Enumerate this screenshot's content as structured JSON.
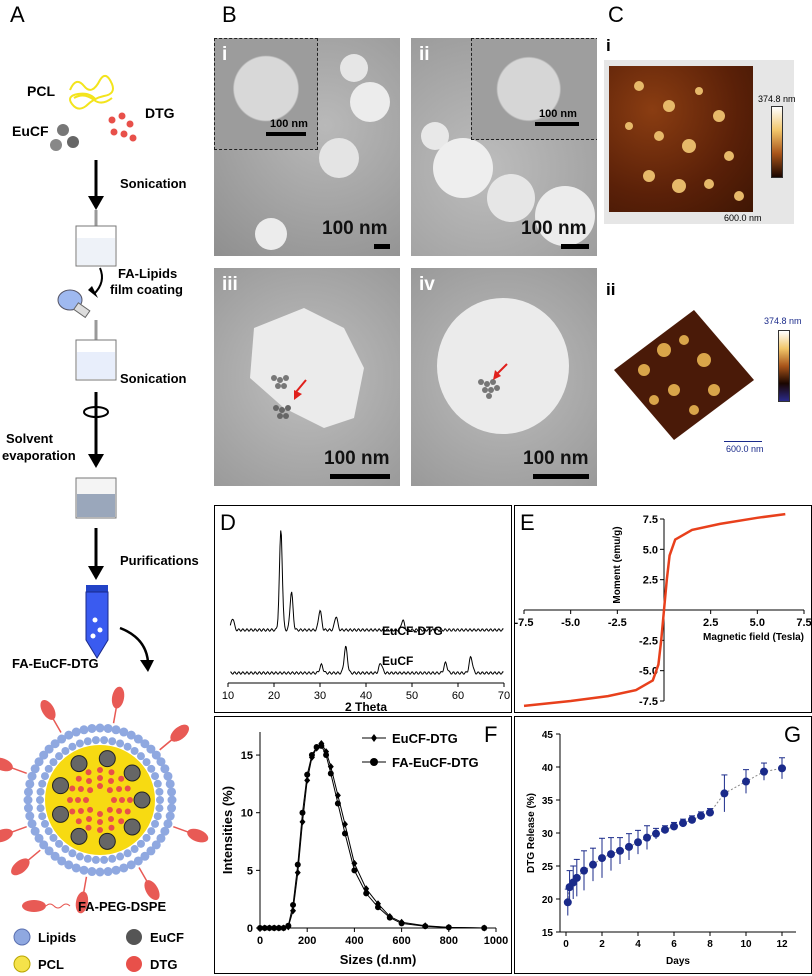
{
  "panels": {
    "A": "A",
    "B": "B",
    "C": "C",
    "D": "D",
    "E": "E",
    "F": "F",
    "G": "G"
  },
  "schematic": {
    "pcl": "PCL",
    "eucf": "EuCF",
    "dtg": "DTG",
    "step1": "Sonication",
    "step2a": "FA-Lipids",
    "step2b": "film coating",
    "step3": "Sonication",
    "step4a": "Solvent",
    "step4b": "evaporation",
    "step5": "Purifications",
    "product": "FA-EuCF-DTG",
    "legend": {
      "peg": "FA-PEG-DSPE",
      "lipids": "Lipids",
      "eucf": "EuCF",
      "pcl": "PCL",
      "dtg": "DTG"
    }
  },
  "tem": {
    "i": {
      "roman": "i",
      "inset_scale": "100 nm",
      "scale": "100 nm"
    },
    "ii": {
      "roman": "ii",
      "inset_scale": "100 nm",
      "scale": "100 nm"
    },
    "iii": {
      "roman": "iii",
      "scale": "100 nm"
    },
    "iv": {
      "roman": "iv",
      "scale": "100 nm"
    }
  },
  "afm": {
    "i": {
      "roman": "i",
      "max": "374.8 nm",
      "scale": "600.0 nm"
    },
    "ii": {
      "roman": "ii",
      "max": "374.8 nm",
      "scale": "600.0 nm"
    }
  },
  "colors": {
    "lipid": "#8fa8e0",
    "eucf": "#555555",
    "pcl": "#f5d800",
    "dtg": "#e8504a",
    "peg": "#e85a55",
    "curveE": "#e8401c",
    "seriesG": "#1a2a8a"
  },
  "chart_data": [
    {
      "id": "D",
      "type": "line",
      "xlabel": "2 Theta",
      "ylabel": "",
      "xlim": [
        10,
        70
      ],
      "xticks": [
        10,
        20,
        30,
        40,
        50,
        60,
        70
      ],
      "series": [
        {
          "name": "EuCF-DTG",
          "peaks_2theta": [
            11,
            21.5,
            23.8,
            30,
            33.5,
            48
          ]
        },
        {
          "name": "EuCF",
          "peaks_2theta": [
            30.3,
            35.6,
            43.2,
            57.3,
            62.8
          ]
        }
      ]
    },
    {
      "id": "E",
      "type": "line",
      "xlabel": "Magnetic field (Tesla)",
      "ylabel": "Moment (emu/g)",
      "xlim": [
        -7.5,
        7.5
      ],
      "ylim": [
        -7.5,
        7.5
      ],
      "xticks": [
        -7.5,
        -5.0,
        -2.5,
        2.5,
        5.0,
        7.5
      ],
      "yticks": [
        7.5,
        5.0,
        2.5,
        -2.5,
        -5.0,
        -7.5
      ],
      "xtick_labels": [
        "-7.5",
        "-5.0",
        "-2.5",
        "2.5",
        "5.0",
        "7.5"
      ],
      "ytick_labels": [
        "7.5",
        "5.0",
        "2.5",
        "-2.5",
        "-5.0",
        "-7.5"
      ],
      "x": [
        -7.5,
        -5,
        -3,
        -1.5,
        -0.6,
        -0.3,
        -0.15,
        0,
        0.15,
        0.3,
        0.6,
        1.5,
        3,
        5,
        6.5
      ],
      "y": [
        -7.9,
        -7.5,
        -7.1,
        -6.6,
        -5.8,
        -4.5,
        -2.5,
        0,
        2.5,
        4.5,
        5.8,
        6.6,
        7.1,
        7.6,
        7.9
      ]
    },
    {
      "id": "F",
      "type": "line",
      "xlabel": "Sizes (d.nm)",
      "ylabel": "Intensities (%)",
      "xlim": [
        0,
        1000
      ],
      "ylim": [
        0,
        17
      ],
      "xticks": [
        0,
        200,
        400,
        600,
        800,
        1000
      ],
      "yticks": [
        0,
        5,
        10,
        15
      ],
      "series": [
        {
          "name": "EuCF-DTG",
          "x": [
            0,
            20,
            40,
            60,
            80,
            100,
            120,
            140,
            160,
            180,
            200,
            220,
            240,
            260,
            280,
            300,
            330,
            360,
            400,
            450,
            500,
            550,
            600,
            700,
            800,
            950
          ],
          "y": [
            0,
            0,
            0,
            0,
            0,
            0,
            0.1,
            1.5,
            4.8,
            9.2,
            12.8,
            14.8,
            15.6,
            16.0,
            15.3,
            14.0,
            11.5,
            9.0,
            5.6,
            3.4,
            2.1,
            1.0,
            0.5,
            0.2,
            0.05,
            0
          ]
        },
        {
          "name": "FA-EuCF-DTG",
          "x": [
            0,
            20,
            40,
            60,
            80,
            100,
            120,
            140,
            160,
            180,
            200,
            220,
            240,
            260,
            280,
            300,
            330,
            360,
            400,
            450,
            500,
            550,
            600,
            700,
            800,
            950
          ],
          "y": [
            0,
            0,
            0,
            0,
            0,
            0,
            0.2,
            2.0,
            5.5,
            10.0,
            13.3,
            15.0,
            15.7,
            15.8,
            15.0,
            13.4,
            10.8,
            8.2,
            5.0,
            3.0,
            1.8,
            0.9,
            0.4,
            0.15,
            0.05,
            0
          ]
        }
      ]
    },
    {
      "id": "G",
      "type": "scatter",
      "xlabel": "Days",
      "ylabel": "DTG Release (%)",
      "xlim": [
        0,
        12
      ],
      "ylim": [
        15,
        45
      ],
      "xticks": [
        0,
        2,
        4,
        6,
        8,
        10,
        12
      ],
      "yticks": [
        15,
        20,
        25,
        30,
        35,
        40,
        45
      ],
      "x": [
        0.1,
        0.2,
        0.4,
        0.6,
        1.0,
        1.5,
        2.0,
        2.5,
        3.0,
        3.5,
        4.0,
        4.5,
        5.0,
        5.5,
        6.0,
        6.5,
        7.0,
        7.5,
        8.0,
        8.8,
        10.0,
        11.0,
        12.0
      ],
      "y": [
        19.5,
        21.8,
        22.5,
        23.2,
        24.3,
        25.2,
        26.2,
        26.8,
        27.3,
        27.9,
        28.6,
        29.3,
        29.9,
        30.5,
        31.0,
        31.5,
        32.0,
        32.6,
        33.1,
        36.0,
        37.8,
        39.3,
        39.8
      ],
      "err": [
        2.0,
        2.5,
        2.5,
        2.8,
        3.0,
        2.5,
        3.0,
        2.5,
        2.0,
        2.0,
        1.8,
        1.8,
        0.8,
        0.6,
        0.6,
        0.6,
        0.6,
        0.6,
        0.6,
        2.8,
        1.8,
        1.3,
        1.6
      ]
    }
  ]
}
